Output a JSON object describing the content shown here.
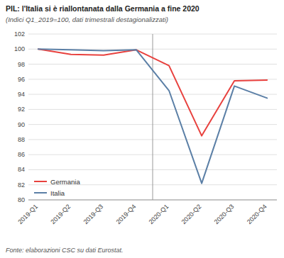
{
  "chart_data": {
    "type": "line",
    "title": "PIL: l'Italia si è riallontanata dalla Germania a fine 2020",
    "subtitle": "(Indici Q1_2019=100, dati trimestrali destagionalizzati)",
    "footnote": "Fonte: elaborazioni CSC su dati Eurostat.",
    "categories": [
      "2019-Q1",
      "2019-Q2",
      "2019-Q3",
      "2019-Q4",
      "2020-Q1",
      "2020-Q2",
      "2020-Q3",
      "2020-Q4"
    ],
    "series": [
      {
        "name": "Germania",
        "color": "#e8413e",
        "values": [
          100.0,
          99.3,
          99.2,
          99.9,
          97.8,
          88.5,
          95.8,
          95.9
        ]
      },
      {
        "name": "Italia",
        "color": "#5b7fa6",
        "values": [
          100.0,
          99.9,
          99.8,
          99.9,
          94.5,
          82.2,
          95.1,
          93.5
        ]
      }
    ],
    "vline_x": 3.5,
    "ylim": [
      80,
      102
    ],
    "yticks": [
      80,
      82,
      84,
      86,
      88,
      90,
      92,
      94,
      96,
      98,
      100,
      102
    ],
    "grid": true,
    "legend": "lower left"
  }
}
